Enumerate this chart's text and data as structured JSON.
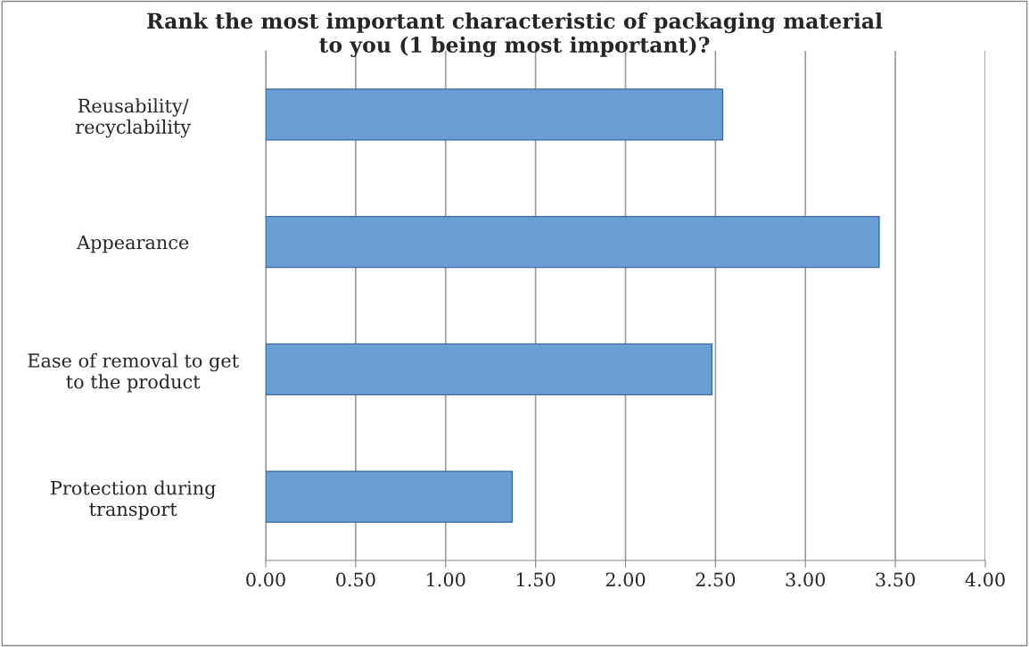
{
  "chart_data": {
    "type": "bar",
    "orientation": "horizontal",
    "title": "Rank the most important characteristic of packaging material\nto you (1 being most important)?",
    "categories": [
      "Reusability/\nrecyclability",
      "Appearance",
      "Ease of removal to get\nto the product",
      "Protection during\ntransport"
    ],
    "values": [
      2.54,
      3.41,
      2.48,
      1.37
    ],
    "color": "#6a9fd6",
    "xlim": [
      0,
      4
    ],
    "xticks": [
      {
        "value": 0,
        "label": "0.00"
      },
      {
        "value": 0.5,
        "label": "0.50"
      },
      {
        "value": 1,
        "label": "1.00"
      },
      {
        "value": 1.5,
        "label": "1.50"
      },
      {
        "value": 2,
        "label": "2.00"
      },
      {
        "value": 2.5,
        "label": "2.50"
      },
      {
        "value": 3,
        "label": "3.00"
      },
      {
        "value": 3.5,
        "label": "3.50"
      },
      {
        "value": 4,
        "label": "4.00"
      }
    ],
    "grid": "x"
  }
}
